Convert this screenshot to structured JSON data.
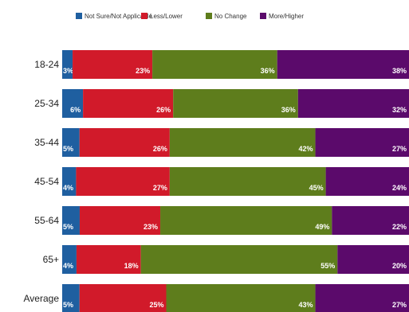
{
  "chart_data": {
    "type": "bar",
    "orientation": "horizontal",
    "stacked": true,
    "percent_stacked": true,
    "value_suffix": "%",
    "legend_position": "top",
    "grid": false,
    "categories": [
      "18-24",
      "25-34",
      "35-44",
      "45-54",
      "55-64",
      "65+",
      "Average"
    ],
    "series": [
      {
        "name": "Not Sure/Not Applicable",
        "color": "#1f5fa0",
        "values": [
          3,
          6,
          5,
          4,
          5,
          4,
          5
        ]
      },
      {
        "name": "Less/Lower",
        "color": "#d11a2a",
        "values": [
          23,
          26,
          26,
          27,
          23,
          18,
          25
        ]
      },
      {
        "name": "No Change",
        "color": "#5e7d1c",
        "values": [
          36,
          36,
          42,
          45,
          49,
          55,
          43
        ]
      },
      {
        "name": "More/Higher",
        "color": "#5b0a6b",
        "values": [
          38,
          32,
          27,
          24,
          22,
          20,
          27
        ]
      }
    ]
  }
}
